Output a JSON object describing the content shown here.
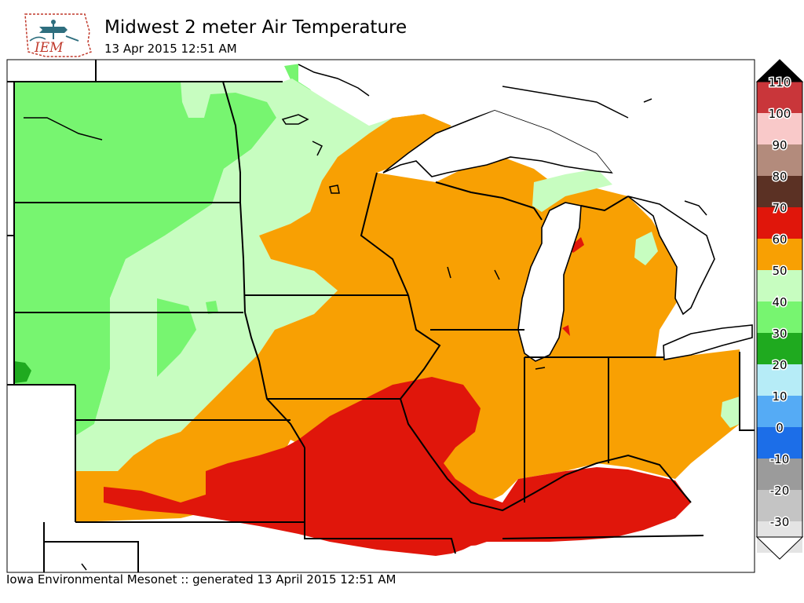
{
  "header": {
    "logo_text": "IEM",
    "title": "Midwest 2 meter Air Temperature",
    "subtitle": "13 Apr 2015 12:51 AM"
  },
  "footer": {
    "text": "Iowa Environmental Mesonet :: generated 13 April 2015 12:51 AM"
  },
  "colors": {
    "water": "#ffffff",
    "lake_ice": "#ffffff",
    "outline": "#000000"
  },
  "legend": {
    "labels": [
      "110",
      "100",
      "90",
      "80",
      "70",
      "60",
      "50",
      "40",
      "30",
      "20",
      "10",
      "0",
      "-10",
      "-20",
      "-30"
    ],
    "bins": [
      {
        "min": 100,
        "max": 110,
        "color": "#c9363a"
      },
      {
        "min": 90,
        "max": 100,
        "color": "#f9c9c9"
      },
      {
        "min": 80,
        "max": 90,
        "color": "#b38b7c"
      },
      {
        "min": 70,
        "max": 80,
        "color": "#5b3124"
      },
      {
        "min": 60,
        "max": 70,
        "color": "#e0160b"
      },
      {
        "min": 50,
        "max": 60,
        "color": "#f8a003"
      },
      {
        "min": 40,
        "max": 50,
        "color": "#c7fdc0"
      },
      {
        "min": 30,
        "max": 40,
        "color": "#77f570"
      },
      {
        "min": 20,
        "max": 30,
        "color": "#1faa1f"
      },
      {
        "min": 10,
        "max": 20,
        "color": "#b6ecf7"
      },
      {
        "min": 0,
        "max": 10,
        "color": "#55abf5"
      },
      {
        "min": -10,
        "max": 0,
        "color": "#1c6ee8"
      },
      {
        "min": -20,
        "max": -10,
        "color": "#9b9b9b"
      },
      {
        "min": -30,
        "max": -20,
        "color": "#c4c4c4"
      },
      {
        "min": -40,
        "max": -30,
        "color": "#e4e4e4"
      }
    ],
    "overflow_top_color": "#000000",
    "overflow_bottom_color": "#ffffff"
  },
  "map_regions": {
    "band_30_40": "#77f570",
    "band_40_50": "#c7fdc0",
    "band_50_60": "#f8a003",
    "band_60_70": "#e0160b",
    "band_20_30": "#1faa1f"
  }
}
